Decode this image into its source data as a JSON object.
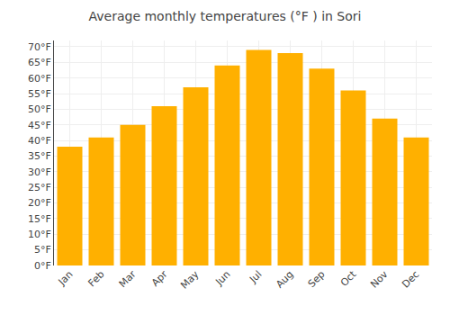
{
  "chart_data": {
    "type": "bar",
    "title": "Average monthly temperatures (°F ) in Sori",
    "categories": [
      "Jan",
      "Feb",
      "Mar",
      "Apr",
      "May",
      "Jun",
      "Jul",
      "Aug",
      "Sep",
      "Oct",
      "Nov",
      "Dec"
    ],
    "values": [
      38,
      41,
      45,
      51,
      57,
      64,
      69,
      68,
      63,
      56,
      47,
      41
    ],
    "color": "#FFB000",
    "ylim": [
      0,
      72
    ],
    "yticks": [
      {
        "value": 0,
        "label": "0°F"
      },
      {
        "value": 5,
        "label": "5°F"
      },
      {
        "value": 10,
        "label": "10°F"
      },
      {
        "value": 15,
        "label": "15°F"
      },
      {
        "value": 20,
        "label": "20°F"
      },
      {
        "value": 25,
        "label": "25°F"
      },
      {
        "value": 30,
        "label": "30°F"
      },
      {
        "value": 35,
        "label": "35°F"
      },
      {
        "value": 40,
        "label": "40°F"
      },
      {
        "value": 45,
        "label": "45°F"
      },
      {
        "value": 50,
        "label": "50°F"
      },
      {
        "value": 55,
        "label": "55°F"
      },
      {
        "value": 60,
        "label": "60°F"
      },
      {
        "value": 65,
        "label": "65°F"
      },
      {
        "value": 70,
        "label": "70°F"
      }
    ],
    "grid": true
  }
}
